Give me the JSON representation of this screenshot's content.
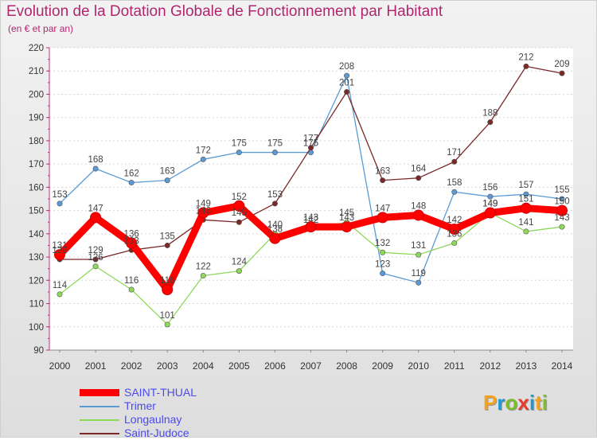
{
  "header": {
    "title": "Evolution de la Dotation Globale de Fonctionnement par Habitant",
    "subtitle": "(en € et par an)"
  },
  "logo": {
    "text": "Proxiti",
    "colors": [
      "#f2a21b",
      "#1d9ad6",
      "#7cbd2a",
      "#e63b2e",
      "#1d9ad6",
      "#f2a21b",
      "#7cbd2a"
    ]
  },
  "chart_data": {
    "type": "line",
    "categories": [
      "2000",
      "2001",
      "2002",
      "2003",
      "2004",
      "2005",
      "2006",
      "2007",
      "2008",
      "2009",
      "2010",
      "2011",
      "2012",
      "2013",
      "2014"
    ],
    "ylim": [
      90,
      220
    ],
    "yticks": [
      90,
      100,
      110,
      120,
      130,
      140,
      150,
      160,
      170,
      180,
      190,
      200,
      210,
      220
    ],
    "grid": "horizontal-dotted",
    "legend_placement": "bottom-left",
    "series": [
      {
        "name": "SAINT-THUAL",
        "color": "#ff0000",
        "values": [
          131,
          147,
          136,
          116,
          149,
          152,
          138,
          143,
          143,
          147,
          148,
          142,
          149,
          151,
          150
        ]
      },
      {
        "name": "Trimer",
        "color": "#5b9bd5",
        "values": [
          153,
          168,
          162,
          163,
          172,
          175,
          175,
          175,
          208,
          123,
          119,
          158,
          156,
          157,
          155
        ]
      },
      {
        "name": "Longaulnay",
        "color": "#8fd95a",
        "values": [
          114,
          126,
          116,
          101,
          122,
          124,
          140,
          142,
          145,
          132,
          131,
          136,
          149,
          141,
          143
        ]
      },
      {
        "name": "Saint-Judoce",
        "color": "#7a2828",
        "values": [
          129,
          129,
          133,
          135,
          146,
          145,
          153,
          177,
          201,
          163,
          164,
          171,
          188,
          212,
          209
        ]
      }
    ]
  }
}
